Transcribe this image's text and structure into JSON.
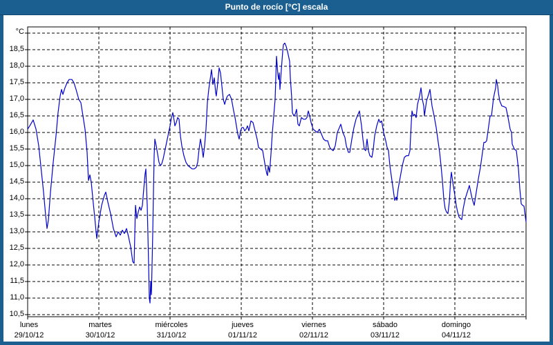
{
  "window": {
    "title": "Punto de rocío [°C] escala",
    "title_bar_color": "#1B5E90",
    "frame_color": "#1B5E90",
    "background": "#FFFFFF"
  },
  "chart_data": {
    "type": "line",
    "title": "Punto de rocío [°C] escala",
    "xlabel": "",
    "ylabel": "°C",
    "unit_label": "°C",
    "line_color": "#0000CC",
    "grid": true,
    "legend": "none",
    "ylim": [
      10.5,
      19.0
    ],
    "ytick_step": 0.5,
    "ytick_labels": [
      {
        "v": 18.5,
        "label": "18,5"
      },
      {
        "v": 18.0,
        "label": "18,0"
      },
      {
        "v": 17.5,
        "label": "17,5"
      },
      {
        "v": 17.0,
        "label": "17,0"
      },
      {
        "v": 16.5,
        "label": "16,5"
      },
      {
        "v": 16.0,
        "label": "16,0"
      },
      {
        "v": 15.5,
        "label": "15,5"
      },
      {
        "v": 15.0,
        "label": "15,0"
      },
      {
        "v": 14.5,
        "label": "14,5"
      },
      {
        "v": 14.0,
        "label": "14,0"
      },
      {
        "v": 13.5,
        "label": "13,5"
      },
      {
        "v": 13.0,
        "label": "13,0"
      },
      {
        "v": 12.5,
        "label": "12,5"
      },
      {
        "v": 12.0,
        "label": "12,0"
      },
      {
        "v": 11.5,
        "label": "11,5"
      },
      {
        "v": 11.0,
        "label": "11,0"
      },
      {
        "v": 10.5,
        "label": "10,5"
      }
    ],
    "x_days": [
      {
        "name": "lunes",
        "date": "29/10/12"
      },
      {
        "name": "martes",
        "date": "30/10/12"
      },
      {
        "name": "miércoles",
        "date": "31/10/12"
      },
      {
        "name": "jueves",
        "date": "01/11/12"
      },
      {
        "name": "viernes",
        "date": "02/11/12"
      },
      {
        "name": "sábado",
        "date": "03/11/12"
      },
      {
        "name": "domingo",
        "date": "04/11/12"
      }
    ],
    "points": [
      [
        0.0,
        16.1
      ],
      [
        0.029,
        16.2
      ],
      [
        0.078,
        16.38
      ],
      [
        0.117,
        16.1
      ],
      [
        0.155,
        15.6
      ],
      [
        0.194,
        14.8
      ],
      [
        0.223,
        14.2
      ],
      [
        0.252,
        13.5
      ],
      [
        0.272,
        13.1
      ],
      [
        0.291,
        13.35
      ],
      [
        0.32,
        14.2
      ],
      [
        0.359,
        15.1
      ],
      [
        0.398,
        15.9
      ],
      [
        0.427,
        16.6
      ],
      [
        0.456,
        17.1
      ],
      [
        0.476,
        17.3
      ],
      [
        0.495,
        17.15
      ],
      [
        0.524,
        17.35
      ],
      [
        0.553,
        17.5
      ],
      [
        0.583,
        17.6
      ],
      [
        0.621,
        17.6
      ],
      [
        0.65,
        17.5
      ],
      [
        0.68,
        17.3
      ],
      [
        0.718,
        17.0
      ],
      [
        0.748,
        16.9
      ],
      [
        0.777,
        16.5
      ],
      [
        0.806,
        16.1
      ],
      [
        0.835,
        15.4
      ],
      [
        0.854,
        14.55
      ],
      [
        0.874,
        14.72
      ],
      [
        0.893,
        14.5
      ],
      [
        0.922,
        13.85
      ],
      [
        0.942,
        13.45
      ],
      [
        0.961,
        13.0
      ],
      [
        0.971,
        12.8
      ],
      [
        1.0,
        13.3
      ],
      [
        1.039,
        13.8
      ],
      [
        1.078,
        14.1
      ],
      [
        1.097,
        14.2
      ],
      [
        1.126,
        13.9
      ],
      [
        1.165,
        13.55
      ],
      [
        1.204,
        13.1
      ],
      [
        1.243,
        12.85
      ],
      [
        1.272,
        13.0
      ],
      [
        1.301,
        12.9
      ],
      [
        1.33,
        13.05
      ],
      [
        1.359,
        12.95
      ],
      [
        1.388,
        13.1
      ],
      [
        1.417,
        12.85
      ],
      [
        1.447,
        12.55
      ],
      [
        1.476,
        12.1
      ],
      [
        1.495,
        12.05
      ],
      [
        1.515,
        13.8
      ],
      [
        1.534,
        13.4
      ],
      [
        1.553,
        13.6
      ],
      [
        1.573,
        13.75
      ],
      [
        1.592,
        13.65
      ],
      [
        1.612,
        13.8
      ],
      [
        1.631,
        14.3
      ],
      [
        1.65,
        14.75
      ],
      [
        1.66,
        14.9
      ],
      [
        1.68,
        13.8
      ],
      [
        1.689,
        12.9
      ],
      [
        1.699,
        12.0
      ],
      [
        1.709,
        11.0
      ],
      [
        1.718,
        10.85
      ],
      [
        1.728,
        11.5
      ],
      [
        1.738,
        11.1
      ],
      [
        1.748,
        12.0
      ],
      [
        1.757,
        13.0
      ],
      [
        1.767,
        14.2
      ],
      [
        1.777,
        15.3
      ],
      [
        1.786,
        15.8
      ],
      [
        1.806,
        15.6
      ],
      [
        1.825,
        15.35
      ],
      [
        1.845,
        15.1
      ],
      [
        1.864,
        15.0
      ],
      [
        1.883,
        15.05
      ],
      [
        1.903,
        15.2
      ],
      [
        1.922,
        15.4
      ],
      [
        1.942,
        15.6
      ],
      [
        1.961,
        15.8
      ],
      [
        1.981,
        16.0
      ],
      [
        2.0,
        16.2
      ],
      [
        2.019,
        16.45
      ],
      [
        2.039,
        16.6
      ],
      [
        2.058,
        16.35
      ],
      [
        2.068,
        16.2
      ],
      [
        2.087,
        16.3
      ],
      [
        2.107,
        16.45
      ],
      [
        2.126,
        16.4
      ],
      [
        2.146,
        15.9
      ],
      [
        2.165,
        15.6
      ],
      [
        2.194,
        15.3
      ],
      [
        2.223,
        15.1
      ],
      [
        2.252,
        15.0
      ],
      [
        2.282,
        14.95
      ],
      [
        2.311,
        14.9
      ],
      [
        2.34,
        14.9
      ],
      [
        2.369,
        14.95
      ],
      [
        2.388,
        15.1
      ],
      [
        2.408,
        15.5
      ],
      [
        2.427,
        15.8
      ],
      [
        2.447,
        15.55
      ],
      [
        2.466,
        15.25
      ],
      [
        2.485,
        15.6
      ],
      [
        2.505,
        16.1
      ],
      [
        2.524,
        16.9
      ],
      [
        2.544,
        17.3
      ],
      [
        2.563,
        17.6
      ],
      [
        2.583,
        17.9
      ],
      [
        2.602,
        17.45
      ],
      [
        2.621,
        17.65
      ],
      [
        2.641,
        17.2
      ],
      [
        2.65,
        17.1
      ],
      [
        2.67,
        17.5
      ],
      [
        2.689,
        17.95
      ],
      [
        2.709,
        17.8
      ],
      [
        2.728,
        17.4
      ],
      [
        2.748,
        17.0
      ],
      [
        2.767,
        16.85
      ],
      [
        2.786,
        17.0
      ],
      [
        2.806,
        17.1
      ],
      [
        2.835,
        17.15
      ],
      [
        2.864,
        17.0
      ],
      [
        2.893,
        16.65
      ],
      [
        2.913,
        16.45
      ],
      [
        2.932,
        16.2
      ],
      [
        2.951,
        15.95
      ],
      [
        2.971,
        15.8
      ],
      [
        2.99,
        16.05
      ],
      [
        3.01,
        16.15
      ],
      [
        3.029,
        16.15
      ],
      [
        3.049,
        16.05
      ],
      [
        3.068,
        16.1
      ],
      [
        3.087,
        16.2
      ],
      [
        3.107,
        16.05
      ],
      [
        3.136,
        16.35
      ],
      [
        3.165,
        16.3
      ],
      [
        3.194,
        16.05
      ],
      [
        3.223,
        15.8
      ],
      [
        3.243,
        15.55
      ],
      [
        3.272,
        15.5
      ],
      [
        3.301,
        15.45
      ],
      [
        3.32,
        15.2
      ],
      [
        3.34,
        14.95
      ],
      [
        3.359,
        14.75
      ],
      [
        3.369,
        14.7
      ],
      [
        3.379,
        15.0
      ],
      [
        3.398,
        14.8
      ],
      [
        3.417,
        15.35
      ],
      [
        3.437,
        16.0
      ],
      [
        3.456,
        16.5
      ],
      [
        3.476,
        17.0
      ],
      [
        3.485,
        17.65
      ],
      [
        3.495,
        18.3
      ],
      [
        3.515,
        17.75
      ],
      [
        3.524,
        17.6
      ],
      [
        3.534,
        17.8
      ],
      [
        3.544,
        17.3
      ],
      [
        3.563,
        17.9
      ],
      [
        3.583,
        18.45
      ],
      [
        3.592,
        18.65
      ],
      [
        3.612,
        18.7
      ],
      [
        3.631,
        18.6
      ],
      [
        3.65,
        18.45
      ],
      [
        3.68,
        18.15
      ],
      [
        3.689,
        17.65
      ],
      [
        3.709,
        17.05
      ],
      [
        3.718,
        16.6
      ],
      [
        3.738,
        16.5
      ],
      [
        3.757,
        16.55
      ],
      [
        3.777,
        16.7
      ],
      [
        3.796,
        16.25
      ],
      [
        3.816,
        16.2
      ],
      [
        3.845,
        16.45
      ],
      [
        3.874,
        16.4
      ],
      [
        3.903,
        16.4
      ],
      [
        3.922,
        16.45
      ],
      [
        3.942,
        16.65
      ],
      [
        3.961,
        16.5
      ],
      [
        3.981,
        16.3
      ],
      [
        4.01,
        16.1
      ],
      [
        4.039,
        16.05
      ],
      [
        4.068,
        16.0
      ],
      [
        4.097,
        16.1
      ],
      [
        4.126,
        15.95
      ],
      [
        4.155,
        15.8
      ],
      [
        4.184,
        15.75
      ],
      [
        4.214,
        15.75
      ],
      [
        4.243,
        15.55
      ],
      [
        4.262,
        15.5
      ],
      [
        4.291,
        15.45
      ],
      [
        4.32,
        15.6
      ],
      [
        4.35,
        16.0
      ],
      [
        4.379,
        16.15
      ],
      [
        4.398,
        16.25
      ],
      [
        4.427,
        16.0
      ],
      [
        4.456,
        15.85
      ],
      [
        4.476,
        15.6
      ],
      [
        4.505,
        15.4
      ],
      [
        4.524,
        15.4
      ],
      [
        4.553,
        15.8
      ],
      [
        4.583,
        16.15
      ],
      [
        4.612,
        16.4
      ],
      [
        4.641,
        16.55
      ],
      [
        4.66,
        16.65
      ],
      [
        4.689,
        16.2
      ],
      [
        4.709,
        15.8
      ],
      [
        4.728,
        15.5
      ],
      [
        4.748,
        15.45
      ],
      [
        4.767,
        15.8
      ],
      [
        4.786,
        15.45
      ],
      [
        4.806,
        15.3
      ],
      [
        4.835,
        15.25
      ],
      [
        4.854,
        15.5
      ],
      [
        4.874,
        15.9
      ],
      [
        4.903,
        16.2
      ],
      [
        4.932,
        16.4
      ],
      [
        4.951,
        16.3
      ],
      [
        4.971,
        16.35
      ],
      [
        5.0,
        16.0
      ],
      [
        5.029,
        15.75
      ],
      [
        5.049,
        15.55
      ],
      [
        5.068,
        15.45
      ],
      [
        5.087,
        15.0
      ],
      [
        5.107,
        14.7
      ],
      [
        5.126,
        14.4
      ],
      [
        5.146,
        14.1
      ],
      [
        5.155,
        13.95
      ],
      [
        5.175,
        14.05
      ],
      [
        5.184,
        13.95
      ],
      [
        5.204,
        14.3
      ],
      [
        5.233,
        14.65
      ],
      [
        5.262,
        15.0
      ],
      [
        5.291,
        15.25
      ],
      [
        5.32,
        15.3
      ],
      [
        5.35,
        15.3
      ],
      [
        5.369,
        15.45
      ],
      [
        5.388,
        16.3
      ],
      [
        5.398,
        16.65
      ],
      [
        5.417,
        16.5
      ],
      [
        5.437,
        16.55
      ],
      [
        5.456,
        16.45
      ],
      [
        5.476,
        16.85
      ],
      [
        5.505,
        17.1
      ],
      [
        5.524,
        17.35
      ],
      [
        5.544,
        17.0
      ],
      [
        5.563,
        16.8
      ],
      [
        5.573,
        16.5
      ],
      [
        5.602,
        16.95
      ],
      [
        5.631,
        17.15
      ],
      [
        5.65,
        17.3
      ],
      [
        5.68,
        16.8
      ],
      [
        5.709,
        16.5
      ],
      [
        5.738,
        16.15
      ],
      [
        5.757,
        15.85
      ],
      [
        5.786,
        15.4
      ],
      [
        5.806,
        15.0
      ],
      [
        5.825,
        14.55
      ],
      [
        5.845,
        14.0
      ],
      [
        5.864,
        13.7
      ],
      [
        5.883,
        13.6
      ],
      [
        5.903,
        13.55
      ],
      [
        5.922,
        13.9
      ],
      [
        5.942,
        14.6
      ],
      [
        5.951,
        14.8
      ],
      [
        5.971,
        14.5
      ],
      [
        6.0,
        14.1
      ],
      [
        6.019,
        13.8
      ],
      [
        6.039,
        13.6
      ],
      [
        6.058,
        13.45
      ],
      [
        6.078,
        13.4
      ],
      [
        6.097,
        13.37
      ],
      [
        6.117,
        13.7
      ],
      [
        6.146,
        14.0
      ],
      [
        6.175,
        14.2
      ],
      [
        6.204,
        14.4
      ],
      [
        6.223,
        14.2
      ],
      [
        6.243,
        14.0
      ],
      [
        6.272,
        13.8
      ],
      [
        6.301,
        14.2
      ],
      [
        6.33,
        14.6
      ],
      [
        6.359,
        14.95
      ],
      [
        6.388,
        15.4
      ],
      [
        6.408,
        15.7
      ],
      [
        6.427,
        15.7
      ],
      [
        6.447,
        15.75
      ],
      [
        6.476,
        16.2
      ],
      [
        6.495,
        16.5
      ],
      [
        6.515,
        16.5
      ],
      [
        6.544,
        17.05
      ],
      [
        6.573,
        17.35
      ],
      [
        6.583,
        17.6
      ],
      [
        6.602,
        17.4
      ],
      [
        6.612,
        17.2
      ],
      [
        6.631,
        16.95
      ],
      [
        6.66,
        16.8
      ],
      [
        6.689,
        16.78
      ],
      [
        6.718,
        16.75
      ],
      [
        6.748,
        16.45
      ],
      [
        6.777,
        16.1
      ],
      [
        6.796,
        16.0
      ],
      [
        6.806,
        15.65
      ],
      [
        6.835,
        15.5
      ],
      [
        6.864,
        15.45
      ],
      [
        6.893,
        14.9
      ],
      [
        6.913,
        14.3
      ],
      [
        6.932,
        13.85
      ],
      [
        6.951,
        13.8
      ],
      [
        6.971,
        13.78
      ],
      [
        6.99,
        13.45
      ],
      [
        7.0,
        13.3
      ]
    ]
  }
}
